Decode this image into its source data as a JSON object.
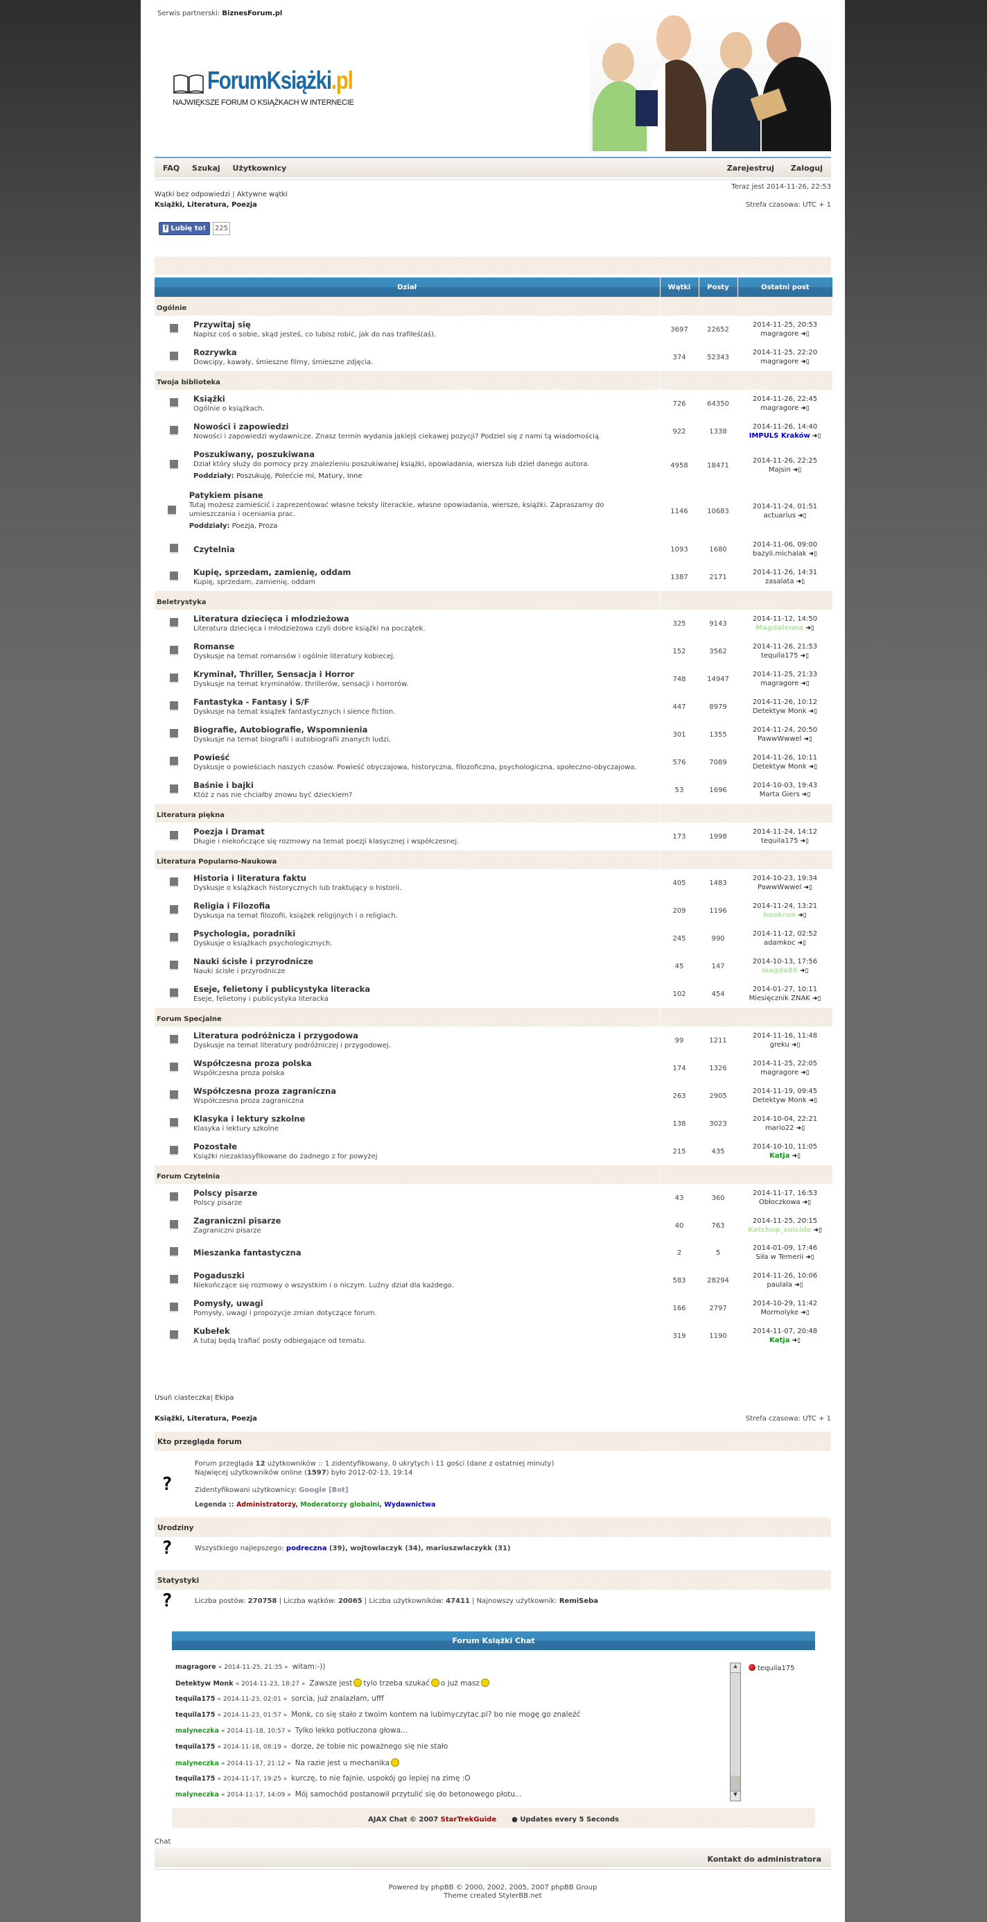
{
  "header": {
    "partner_label": "Serwis partnerski:",
    "partner_name": "BiznesForum.pl",
    "logo_main": "ForumKsiążki",
    "logo_tld": ".pl",
    "tagline": "NAJWIĘKSZE FORUM O KSIĄŻKACH W INTERNECIE"
  },
  "nav": {
    "left": [
      "FAQ",
      "Szukaj",
      "Użytkownicy"
    ],
    "right": [
      "Zarejestruj",
      "Zaloguj"
    ]
  },
  "info": {
    "now": "Teraz jest 2014-11-26, 22:53",
    "link_unanswered": "Wątki bez odpowiedzi",
    "separator": "|",
    "link_active": "Aktywne wątki",
    "breadcrumb": "Książki, Literatura, Poezja",
    "timezone": "Strefa czasowa: UTC + 1"
  },
  "like": {
    "icon": "facebook-icon",
    "label": "Lubię to!",
    "count": "225"
  },
  "table": {
    "headers": [
      "Dział",
      "Wątki",
      "Posty",
      "Ostatni post"
    ],
    "subforums_label": "Poddziały:",
    "categories": [
      {
        "name": "Ogólnie",
        "forums": [
          {
            "title": "Przywitaj się",
            "desc": "Napisz coś o sobie, skąd jesteś, co lubisz robić, jak do nas trafiłeś(aś).",
            "topics": "3697",
            "posts": "22652",
            "last_date": "2014-11-25, 20:53",
            "last_user": "magragore"
          },
          {
            "title": "Rozrywka",
            "desc": "Dowcipy, kawały, śmieszne filmy, śmieszne zdjęcia.",
            "topics": "374",
            "posts": "52343",
            "last_date": "2014-11-25, 22:20",
            "last_user": "magragore"
          }
        ]
      },
      {
        "name": "Twoja biblioteka",
        "forums": [
          {
            "title": "Książki",
            "desc": "Ogólnie o książkach.",
            "topics": "726",
            "posts": "64350",
            "last_date": "2014-11-26, 22:45",
            "last_user": "magragore"
          },
          {
            "title": "Nowości i zapowiedzi",
            "desc": "Nowości i zapowiedzi wydawnicze. Znasz termin wydania jakiejś ciekawej pozycji? Podziel się z nami tą wiadomością.",
            "topics": "922",
            "posts": "1338",
            "last_date": "2014-11-26, 14:40",
            "last_user": "IMPULS Kraków",
            "last_user_color": "#0000c8",
            "last_user_bold": true
          },
          {
            "title": "Poszukiwany, poszukiwana",
            "desc": "Dział który służy do pomocy przy znalezieniu poszukiwanej książki, opowiadania, wiersza lub dzieł danego autora.",
            "subforums": "Poszukuję, Polećcie mi, Matury, Inne",
            "topics": "4958",
            "posts": "18471",
            "last_date": "2014-11-26, 22:25",
            "last_user": "Majsin"
          },
          {
            "title": "Patykiem pisane",
            "desc": "Tutaj możesz zamieścić i zaprezentować własne teksty literackie, własne opowiadania, wiersze, książki. Zapraszamy do umieszczania i oceniania prac.",
            "subforums": "Poezja, Proza",
            "topics": "1146",
            "posts": "10683",
            "last_date": "2014-11-24, 01:51",
            "last_user": "actuarius"
          },
          {
            "title": "Czytelnia",
            "desc": "",
            "topics": "1093",
            "posts": "1680",
            "last_date": "2014-11-06, 09:00",
            "last_user": "bazyli.michalak"
          },
          {
            "title": "Kupię, sprzedam, zamienię, oddam",
            "desc": "Kupię, sprzedam, zamienię, oddam",
            "topics": "1387",
            "posts": "2171",
            "last_date": "2014-11-26, 14:31",
            "last_user": "zasalata"
          }
        ]
      },
      {
        "name": "Beletrystyka",
        "forums": [
          {
            "title": "Literatura dziecięca i młodzieżowa",
            "desc": "Literatura dziecięca i młodzieżowa czyli dobre książki na początek.",
            "topics": "325",
            "posts": "9143",
            "last_date": "2014-11-12, 14:50",
            "last_user": "Magdalenna",
            "last_user_color": "#b3e6a0",
            "last_user_bold": true
          },
          {
            "title": "Romanse",
            "desc": "Dyskusje na temat romansów i ogólnie literatury kobiecej.",
            "topics": "152",
            "posts": "3562",
            "last_date": "2014-11-26, 21:53",
            "last_user": "tequila175"
          },
          {
            "title": "Kryminał, Thriller, Sensacja i Horror",
            "desc": "Dyskusje na temat kryminałów, thrillerów, sensacji i horrorów.",
            "topics": "748",
            "posts": "14947",
            "last_date": "2014-11-25, 21:33",
            "last_user": "magragore"
          },
          {
            "title": "Fantastyka - Fantasy i S/F",
            "desc": "Dyskusje na temat książek fantastycznych i sience fiction.",
            "topics": "447",
            "posts": "8979",
            "last_date": "2014-11-26, 10:12",
            "last_user": "Detektyw Monk"
          },
          {
            "title": "Biografie, Autobiografie, Wspomnienia",
            "desc": "Dyskusje na temat biografii i autobiografii znanych ludzi.",
            "topics": "301",
            "posts": "1355",
            "last_date": "2014-11-24, 20:50",
            "last_user": "PawwWwwel"
          },
          {
            "title": "Powieść",
            "desc": "Dyskusje o powieściach naszych czasów. Powieść obyczajowa, historyczna, filozoficzna, psychologiczna, społeczno-obyczajowa.",
            "topics": "576",
            "posts": "7089",
            "last_date": "2014-11-26, 10:11",
            "last_user": "Detektyw Monk"
          },
          {
            "title": "Baśnie i bajki",
            "desc": "Któż z nas nie chciałby znowu być dzieckiem?",
            "topics": "53",
            "posts": "1696",
            "last_date": "2014-10-03, 19:43",
            "last_user": "Marta Giers"
          }
        ]
      },
      {
        "name": "Literatura piękna",
        "forums": [
          {
            "title": "Poezja i Dramat",
            "desc": "Długie i niekończące się rozmowy na temat poezji klasycznej i współczesnej.",
            "topics": "173",
            "posts": "1998",
            "last_date": "2014-11-24, 14:12",
            "last_user": "tequila175"
          }
        ]
      },
      {
        "name": "Literatura Popularno-Naukowa",
        "forums": [
          {
            "title": "Historia i literatura faktu",
            "desc": "Dyskusje o książkach historycznych lub traktujący o historii.",
            "topics": "405",
            "posts": "1483",
            "last_date": "2014-10-23, 19:34",
            "last_user": "PawwWwwel"
          },
          {
            "title": "Religia i Filozofia",
            "desc": "Dyskusja na temat filozofii, książek religijnych i o religiach.",
            "topics": "209",
            "posts": "1196",
            "last_date": "2014-11-24, 13:21",
            "last_user": "bookrun",
            "last_user_color": "#b3e6a0",
            "last_user_bold": true
          },
          {
            "title": "Psychologia, poradniki",
            "desc": "Dyskusje o książkach psychologicznych.",
            "topics": "245",
            "posts": "990",
            "last_date": "2014-11-12, 02:52",
            "last_user": "adamkoc"
          },
          {
            "title": "Nauki ścisłe i przyrodnicze",
            "desc": "Nauki ścisłe i przyrodnicze",
            "topics": "45",
            "posts": "147",
            "last_date": "2014-10-13, 17:56",
            "last_user": "magda86",
            "last_user_color": "#b3e6a0",
            "last_user_bold": true
          },
          {
            "title": "Eseje, felietony i publicystyka literacka",
            "desc": "Eseje, felietony i publicystyka literacka",
            "topics": "102",
            "posts": "454",
            "last_date": "2014-01-27, 10:11",
            "last_user": "Miesięcznik ZNAK"
          }
        ]
      },
      {
        "name": "Forum Specjalne",
        "forums": [
          {
            "title": "Literatura podróżnicza i przygodowa",
            "desc": "Dyskusje na temat literatury podróżniczej i przygodowej.",
            "topics": "99",
            "posts": "1211",
            "last_date": "2014-11-16, 11:48",
            "last_user": "greku"
          },
          {
            "title": "Współczesna proza polska",
            "desc": "Współczesna proza polska",
            "topics": "174",
            "posts": "1326",
            "last_date": "2014-11-25, 22:05",
            "last_user": "magragore"
          },
          {
            "title": "Współczesna proza zagraniczna",
            "desc": "Współczesna proza zagraniczna",
            "topics": "263",
            "posts": "2905",
            "last_date": "2014-11-19, 09:45",
            "last_user": "Detektyw Monk"
          },
          {
            "title": "Klasyka i lektury szkolne",
            "desc": "Klasyka i lektury szkolne",
            "topics": "138",
            "posts": "3023",
            "last_date": "2014-10-04, 22:21",
            "last_user": "mario22"
          },
          {
            "title": "Pozostałe",
            "desc": "Książki niezaklasyfikowane do żadnego z for powyżej",
            "topics": "215",
            "posts": "435",
            "last_date": "2014-10-10, 11:05",
            "last_user": "Katja",
            "last_user_color": "#16961a",
            "last_user_bold": true
          }
        ]
      },
      {
        "name": "Forum Czytelnia",
        "forums": [
          {
            "title": "Polscy pisarze",
            "desc": "Polscy pisarze",
            "topics": "43",
            "posts": "360",
            "last_date": "2014-11-17, 16:53",
            "last_user": "Obłoczkowa"
          },
          {
            "title": "Zagraniczni pisarze",
            "desc": "Zagraniczni pisarze",
            "topics": "40",
            "posts": "763",
            "last_date": "2014-11-25, 20:15",
            "last_user": "Ketchup_suicide",
            "last_user_color": "#b3e6a0",
            "last_user_bold": true
          },
          {
            "title": "Mieszanka fantastyczna",
            "desc": "",
            "topics": "2",
            "posts": "5",
            "last_date": "2014-01-09, 17:46",
            "last_user": "Siła w Temerii"
          },
          {
            "title": "Pogaduszki",
            "desc": "Niekończące się rozmowy o wszystkim i o niczym. Luźny dział dla każdego.",
            "topics": "583",
            "posts": "28294",
            "last_date": "2014-11-26, 10:06",
            "last_user": "paulala"
          },
          {
            "title": "Pomysły, uwagi",
            "desc": "Pomysły, uwagi i propozycje zmian dotyczące forum.",
            "topics": "166",
            "posts": "2797",
            "last_date": "2014-10-29, 11:42",
            "last_user": "Mormolyke"
          },
          {
            "title": "Kubełek",
            "desc": "A tutaj będą trafiać posty odbiegające od tematu.",
            "topics": "319",
            "posts": "1190",
            "last_date": "2014-11-07, 20:48",
            "last_user": "Katja",
            "last_user_color": "#16961a",
            "last_user_bold": true
          }
        ]
      }
    ]
  },
  "footer_links": {
    "delete_cookies": "Usuń ciasteczka",
    "separator": "|",
    "team": "Ekipa"
  },
  "who_online": {
    "title": "Kto przegląda forum",
    "line1_pre": "Forum przegląda ",
    "line1_count": "12",
    "line1_post": " użytkowników :: 1 zidentyfikowany, 0 ukrytych i 11 gości (dane z ostatniej minuty)",
    "line2_pre": "Najwięcej użytkowników online (",
    "line2_count": "1597",
    "line2_post": ") było 2012-02-13, 19:14",
    "identified_label": "Zidentyfikowani użytkownicy: ",
    "identified_user": "Google [Bot]",
    "legend_label": "Legenda :: ",
    "legend": [
      {
        "label": "Administratorzy",
        "color": "#a00000"
      },
      {
        "label": "Moderatorzy globalni",
        "color": "#129a12"
      },
      {
        "label": "Wydawnictwa",
        "color": "#0000c0"
      }
    ]
  },
  "birthdays": {
    "title": "Urodziny",
    "label": "Wszystkiego najlepszego: ",
    "user1": "podreczna",
    "user1_age": " (39), ",
    "rest": "wojtowlaczyk (34), mariuszwlaczykk (31)"
  },
  "stats": {
    "title": "Statystyki",
    "posts_label": "Liczba postów: ",
    "posts": "270758",
    "topics_label": " | Liczba wątków: ",
    "topics": "20065",
    "users_label": " | Liczba użytkowników: ",
    "users": "47411",
    "newest_label": " | Najnowszy użytkownik: ",
    "newest": "RemiSeba"
  },
  "chat": {
    "title": "Forum Książki Chat",
    "messages": [
      {
        "user": "magragore",
        "time": "« 2014-11-25, 21:35 »",
        "text": "witam:-))",
        "color": "#333"
      },
      {
        "user": "Detektyw Monk",
        "time": "« 2014-11-23, 18:27 »",
        "text": "Zawsze jest",
        "text2": "tylo trzeba szukać",
        "text3": "o już masz",
        "color": "#333"
      },
      {
        "user": "tequila175",
        "time": "« 2014-11-23, 02:01 »",
        "text": "sorcia, już znalazłam, ufff",
        "color": "#333"
      },
      {
        "user": "tequila175",
        "time": "« 2014-11-23, 01:57 »",
        "text": "Monk, co się stało z twoim kontem na lubimyczytac.pl? bo nie mogę go znaleźć",
        "color": "#333"
      },
      {
        "user": "malyneczka",
        "time": "« 2014-11-18, 10:57 »",
        "text": "Tylko lekko potłuczona głowa...",
        "color": "#1f9a1f"
      },
      {
        "user": "tequila175",
        "time": "« 2014-11-18, 08:19 »",
        "text": "dorze, że tobie nic poważnego się nie stało",
        "color": "#333"
      },
      {
        "user": "malyneczka",
        "time": "« 2014-11-17, 21:12 »",
        "text": "Na razie jest u mechanika",
        "smiley_end": true,
        "color": "#1f9a1f"
      },
      {
        "user": "tequila175",
        "time": "« 2014-11-17, 19:25 »",
        "text": "kurczę, to nie fajnie, uspokój go lepiej na zimę :O",
        "color": "#333"
      },
      {
        "user": "malyneczka",
        "time": "« 2014-11-17, 14:09 »",
        "text": "Mój samochód postanowił przytulić się do betonowego płotu...",
        "color": "#1f9a1f"
      }
    ],
    "online_user": "tequila175",
    "footer_pre": "AJAX Chat © 2007 ",
    "footer_link": "StarTrekGuide",
    "footer_updates": "● Updates every 5 Seconds"
  },
  "chat_link": "Chat",
  "contact": "Kontakt do administratora",
  "powered": "Powered by phpBB © 2000, 2002, 2005, 2007 phpBB Group",
  "theme": "Theme created StylerBB.net"
}
